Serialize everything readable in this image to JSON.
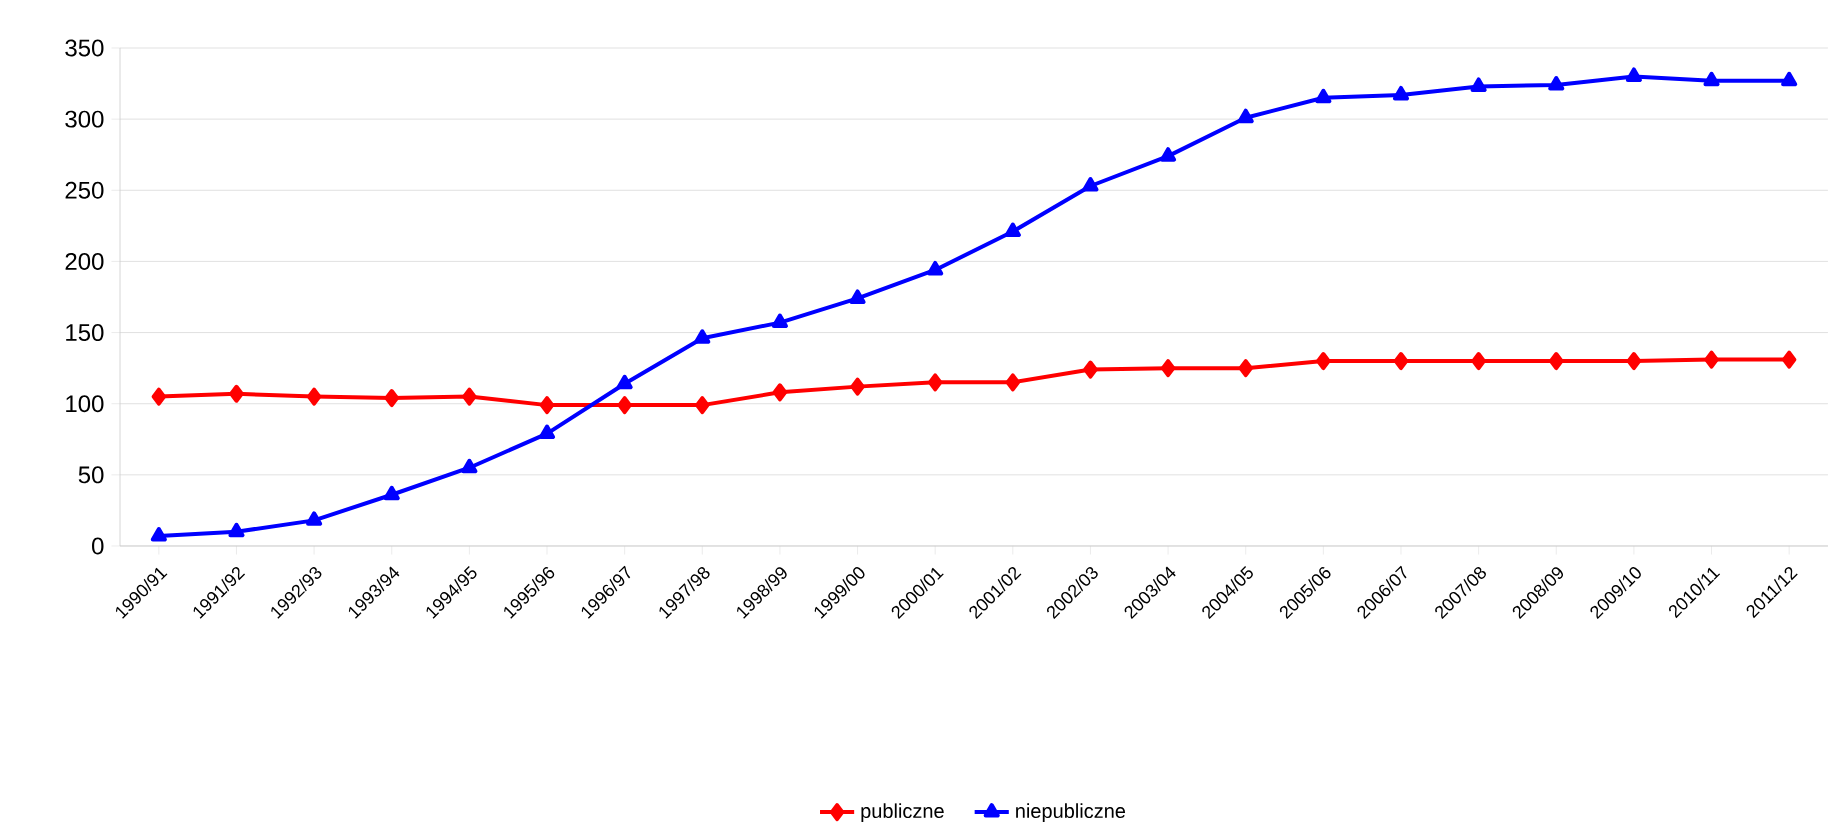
{
  "chart_data": {
    "type": "line",
    "categories": [
      "1990/91",
      "1991/92",
      "1992/93",
      "1993/94",
      "1994/95",
      "1995/96",
      "1996/97",
      "1997/98",
      "1998/99",
      "1999/00",
      "2000/01",
      "2001/02",
      "2002/03",
      "2003/04",
      "2004/05",
      "2005/06",
      "2006/07",
      "2007/08",
      "2008/09",
      "2009/10",
      "2010/11",
      "2011/12"
    ],
    "series": [
      {
        "name": "publiczne",
        "color": "#ff0000",
        "marker": "diamond",
        "values": [
          105,
          107,
          105,
          104,
          105,
          99,
          99,
          99,
          108,
          112,
          115,
          115,
          124,
          125,
          125,
          130,
          130,
          130,
          130,
          130,
          131,
          131
        ]
      },
      {
        "name": "niepubliczne",
        "color": "#0000ff",
        "marker": "triangle",
        "values": [
          7,
          10,
          18,
          36,
          55,
          79,
          114,
          146,
          157,
          174,
          194,
          221,
          253,
          274,
          301,
          315,
          317,
          323,
          324,
          330,
          327,
          327
        ]
      }
    ],
    "ylim": [
      0,
      350
    ],
    "yticks": [
      0,
      50,
      100,
      150,
      200,
      250,
      300,
      350
    ],
    "grid": "y",
    "legend": "bottom",
    "line_style": "solid"
  }
}
